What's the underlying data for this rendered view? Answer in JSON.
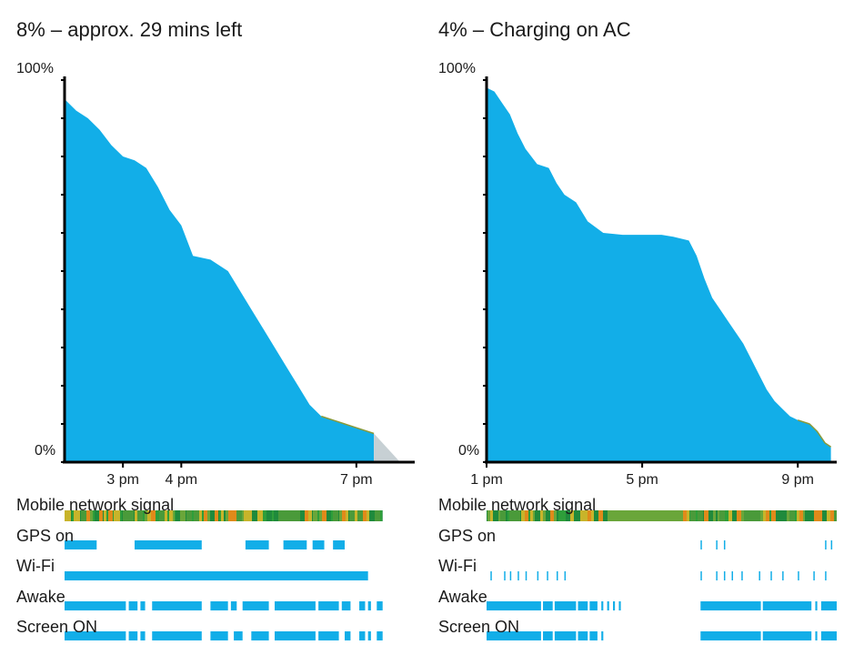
{
  "chart_data": [
    {
      "type": "area",
      "title": "8% – approx. 29 mins left",
      "y_top_label": "100%",
      "y_bottom_label": "0%",
      "ylim": [
        0,
        100
      ],
      "x_ticks": [
        "3 pm",
        "4 pm",
        "7 pm"
      ],
      "x_tick_hours": [
        15,
        16,
        19
      ],
      "xlim_hours": [
        14.0,
        20.0
      ],
      "series": [
        {
          "values": [
            [
              14.0,
              95
            ],
            [
              14.2,
              92
            ],
            [
              14.4,
              90
            ],
            [
              14.6,
              87
            ],
            [
              14.8,
              83
            ],
            [
              15.0,
              80
            ],
            [
              15.2,
              79
            ],
            [
              15.4,
              77
            ],
            [
              15.6,
              72
            ],
            [
              15.8,
              66
            ],
            [
              16.0,
              62
            ],
            [
              16.2,
              54
            ],
            [
              16.5,
              53
            ],
            [
              16.8,
              50
            ],
            [
              17.0,
              45
            ],
            [
              17.2,
              40
            ],
            [
              17.4,
              35
            ],
            [
              17.6,
              30
            ],
            [
              17.8,
              25
            ],
            [
              18.0,
              20
            ],
            [
              18.2,
              15
            ],
            [
              18.4,
              12
            ],
            [
              18.6,
              11
            ],
            [
              18.8,
              10
            ],
            [
              19.0,
              9
            ],
            [
              19.3,
              7.5
            ]
          ]
        }
      ],
      "projection": {
        "from": [
          19.3,
          7.5
        ],
        "to": [
          19.75,
          0
        ]
      },
      "accent_color": "#12aee8",
      "projection_color": "#c7d0d4",
      "rows": [
        {
          "label": "Mobile network signal",
          "type": "signal"
        },
        {
          "label": "GPS on",
          "type": "bars",
          "segments": [
            [
              14.0,
              14.55
            ],
            [
              15.2,
              16.35
            ],
            [
              17.1,
              17.5
            ],
            [
              17.75,
              18.15
            ],
            [
              18.25,
              18.45
            ],
            [
              18.6,
              18.8
            ]
          ]
        },
        {
          "label": "Wi-Fi",
          "type": "bars",
          "segments": [
            [
              14.0,
              19.2
            ]
          ]
        },
        {
          "label": "Awake",
          "type": "bars",
          "segments": [
            [
              14.0,
              15.05
            ],
            [
              15.1,
              15.25
            ],
            [
              15.3,
              15.38
            ],
            [
              15.5,
              16.35
            ],
            [
              16.5,
              16.8
            ],
            [
              16.85,
              16.95
            ],
            [
              17.05,
              17.5
            ],
            [
              17.6,
              18.3
            ],
            [
              18.35,
              18.7
            ],
            [
              18.75,
              18.9
            ],
            [
              19.05,
              19.15
            ],
            [
              19.2,
              19.25
            ],
            [
              19.35,
              19.45
            ]
          ]
        },
        {
          "label": "Screen ON",
          "type": "bars",
          "segments": [
            [
              14.0,
              15.05
            ],
            [
              15.1,
              15.25
            ],
            [
              15.3,
              15.38
            ],
            [
              15.5,
              16.35
            ],
            [
              16.5,
              16.8
            ],
            [
              16.9,
              17.05
            ],
            [
              17.2,
              17.5
            ],
            [
              17.6,
              18.3
            ],
            [
              18.35,
              18.7
            ],
            [
              18.8,
              18.9
            ],
            [
              19.05,
              19.15
            ],
            [
              19.2,
              19.25
            ],
            [
              19.35,
              19.45
            ]
          ]
        }
      ]
    },
    {
      "type": "area",
      "title": "4% – Charging on AC",
      "y_top_label": "100%",
      "y_bottom_label": "0%",
      "ylim": [
        0,
        100
      ],
      "x_ticks": [
        "1 pm",
        "5 pm",
        "9 pm"
      ],
      "x_tick_hours": [
        13,
        17,
        21
      ],
      "xlim_hours": [
        13.0,
        22.0
      ],
      "series": [
        {
          "values": [
            [
              13.0,
              98
            ],
            [
              13.2,
              97
            ],
            [
              13.4,
              94
            ],
            [
              13.6,
              91
            ],
            [
              13.8,
              86
            ],
            [
              14.0,
              82
            ],
            [
              14.3,
              78
            ],
            [
              14.6,
              77
            ],
            [
              14.8,
              73
            ],
            [
              15.0,
              70
            ],
            [
              15.3,
              68
            ],
            [
              15.6,
              63
            ],
            [
              16.0,
              60
            ],
            [
              16.5,
              59.5
            ],
            [
              17.0,
              59.5
            ],
            [
              17.5,
              59.5
            ],
            [
              17.8,
              59
            ],
            [
              18.2,
              58
            ],
            [
              18.4,
              54
            ],
            [
              18.6,
              48
            ],
            [
              18.8,
              43
            ],
            [
              19.0,
              40
            ],
            [
              19.2,
              37
            ],
            [
              19.4,
              34
            ],
            [
              19.6,
              31
            ],
            [
              19.8,
              27
            ],
            [
              20.0,
              23
            ],
            [
              20.2,
              19
            ],
            [
              20.4,
              16
            ],
            [
              20.6,
              14
            ],
            [
              20.8,
              12
            ],
            [
              21.0,
              11
            ],
            [
              21.3,
              10
            ],
            [
              21.5,
              8
            ],
            [
              21.7,
              5
            ],
            [
              21.85,
              4
            ]
          ]
        }
      ],
      "accent_color": "#12aee8",
      "rows": [
        {
          "label": "Mobile network signal",
          "type": "signal"
        },
        {
          "label": "GPS on",
          "type": "bars",
          "segments": [
            [
              18.5,
              18.53
            ],
            [
              18.9,
              18.93
            ],
            [
              19.1,
              19.13
            ],
            [
              21.7,
              21.73
            ],
            [
              21.85,
              21.88
            ]
          ]
        },
        {
          "label": "Wi-Fi",
          "type": "bars",
          "segments": [
            [
              13.1,
              13.13
            ],
            [
              13.45,
              13.48
            ],
            [
              13.6,
              13.63
            ],
            [
              13.8,
              13.83
            ],
            [
              14.0,
              14.03
            ],
            [
              14.3,
              14.33
            ],
            [
              14.55,
              14.58
            ],
            [
              14.8,
              14.83
            ],
            [
              15.0,
              15.03
            ],
            [
              18.5,
              18.53
            ],
            [
              18.9,
              18.93
            ],
            [
              19.1,
              19.13
            ],
            [
              19.3,
              19.33
            ],
            [
              19.55,
              19.58
            ],
            [
              20.0,
              20.03
            ],
            [
              20.3,
              20.33
            ],
            [
              20.6,
              20.63
            ],
            [
              21.0,
              21.03
            ],
            [
              21.4,
              21.43
            ],
            [
              21.7,
              21.73
            ]
          ]
        },
        {
          "label": "Awake",
          "type": "bars",
          "segments": [
            [
              13.0,
              14.4
            ],
            [
              14.45,
              14.7
            ],
            [
              14.75,
              15.3
            ],
            [
              15.35,
              15.6
            ],
            [
              15.65,
              15.85
            ],
            [
              15.95,
              16.0
            ],
            [
              16.1,
              16.15
            ],
            [
              16.25,
              16.3
            ],
            [
              16.4,
              16.45
            ],
            [
              18.5,
              20.05
            ],
            [
              20.1,
              21.35
            ],
            [
              21.45,
              21.5
            ],
            [
              21.6,
              22.0
            ]
          ]
        },
        {
          "label": "Screen ON",
          "type": "bars",
          "segments": [
            [
              13.0,
              14.4
            ],
            [
              14.45,
              14.7
            ],
            [
              14.75,
              15.3
            ],
            [
              15.35,
              15.6
            ],
            [
              15.65,
              15.85
            ],
            [
              15.95,
              16.0
            ],
            [
              18.5,
              20.05
            ],
            [
              20.1,
              21.35
            ],
            [
              21.45,
              21.5
            ],
            [
              21.6,
              22.0
            ]
          ]
        }
      ]
    }
  ]
}
